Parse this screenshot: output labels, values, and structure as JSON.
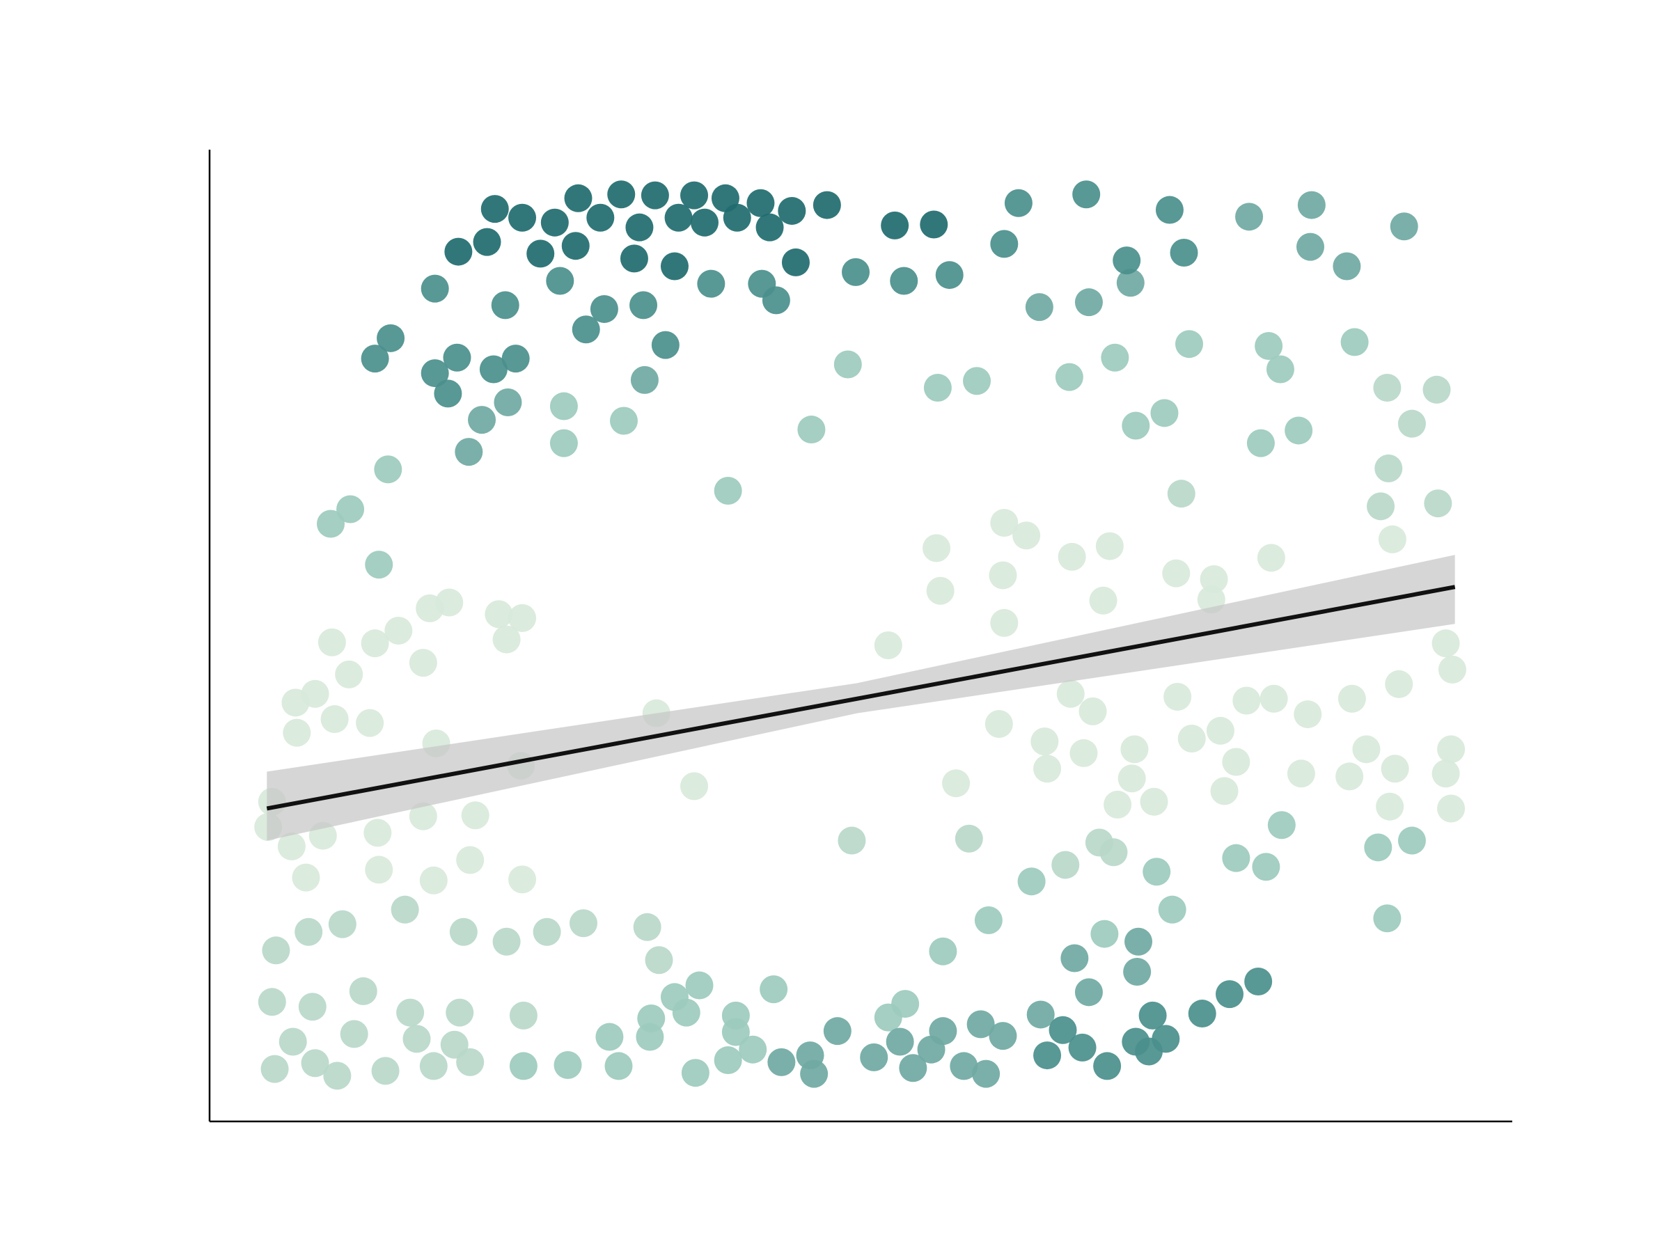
{
  "chart_data": {
    "type": "scatter",
    "xlim": [
      0,
      100
    ],
    "ylim": [
      0,
      100
    ],
    "series": [
      {
        "color": "#d8e9da",
        "x": [
          61,
          62.7,
          55.8,
          66.2,
          69.1,
          81.5,
          90.8,
          74.2,
          77.1,
          56.1,
          60.9,
          16.9,
          18.4,
          22.2,
          24,
          9.4,
          12.7,
          14.5,
          22.8,
          52.1,
          61,
          68.6,
          76.9,
          16.4,
          10.7,
          6.6,
          8.1,
          9.6,
          12.3,
          6.7,
          34.3,
          17.4,
          23.9,
          37.2,
          66.1,
          67.8,
          71,
          74.3,
          75.4,
          77.6,
          79.6,
          81.7,
          84.3,
          87.7,
          91.3,
          95.4,
          94.9,
          60.6,
          64.1,
          64.3,
          67.1,
          70.8,
          72.5,
          69.7,
          57.3,
          4.8,
          4.5,
          8.7,
          12.9,
          16.4,
          20.4,
          6.3,
          7.4,
          13,
          17.2,
          20,
          24,
          88.8,
          91,
          94.9,
          95.3,
          87.5,
          83.8,
          78.8,
          77.9,
          95.3,
          90.6
        ],
        "values": [
          61.6,
          60.3,
          59,
          58.1,
          59.2,
          58,
          59.9,
          56.4,
          55.8,
          54.6,
          56.2,
          52.8,
          53.4,
          52.2,
          51.8,
          49.3,
          49.2,
          50.5,
          49.6,
          49,
          51.3,
          53.6,
          53.7,
          47.2,
          46,
          43.1,
          44,
          41.4,
          41,
          40,
          42,
          38.9,
          36.6,
          34.5,
          44,
          42.2,
          38.3,
          43.7,
          39.4,
          40.2,
          43.3,
          43.5,
          41.9,
          43.5,
          45,
          46.5,
          49.2,
          40.9,
          39.1,
          36.3,
          37.9,
          35.3,
          32.9,
          32.6,
          34.8,
          32.9,
          30.3,
          29.4,
          29.7,
          31.4,
          31.5,
          28.3,
          25.1,
          25.9,
          24.8,
          26.9,
          24.9,
          38.3,
          36.3,
          35.8,
          38.3,
          35.5,
          35.8,
          37,
          34,
          32.2,
          32.4
        ]
      },
      {
        "color": "#b8d8ca",
        "x": [
          5.1,
          7.6,
          10.2,
          15,
          19.5,
          22.8,
          25.9,
          28.7,
          33.6,
          34.5,
          4.8,
          7.9,
          11.8,
          15.4,
          19.2,
          24.1,
          6.4,
          11.1,
          15.9,
          18.8,
          5,
          8.1,
          9.8,
          13.5,
          17.2,
          20,
          65.7,
          69.4,
          68.3,
          58.3,
          49.3,
          90.5,
          94.3,
          92.3,
          90.4,
          94.2,
          74.6,
          89.9
        ],
        "values": [
          17.6,
          19.5,
          20.3,
          21.8,
          19.5,
          18.5,
          19.5,
          20.4,
          20,
          16.6,
          12.3,
          11.8,
          13.4,
          11.2,
          11.2,
          10.9,
          8.2,
          9,
          8.5,
          7.9,
          5.4,
          6,
          4.7,
          5.2,
          5.7,
          6.1,
          26.4,
          27.7,
          28.7,
          29.1,
          28.9,
          67.2,
          63.6,
          71.8,
          75.5,
          75.3,
          64.6,
          63.3
        ]
      },
      {
        "color": "#9ccbbd",
        "x": [
          49,
          55.9,
          58.9,
          66,
          69.5,
          75.2,
          81.3,
          82.2,
          87.9,
          27.2,
          31.8,
          27.2,
          46.2,
          71.1,
          73.3,
          80.7,
          83.6,
          13.7,
          39.8,
          90.4,
          73.9,
          68.7,
          59.8,
          56.3,
          63.1,
          72.7,
          78.8,
          81.1,
          82.3,
          89.7,
          92.3,
          53.4,
          52.1,
          37.6,
          43.3,
          35.7,
          40.4,
          33.9,
          36.6,
          30.7,
          33.8,
          40.4,
          41.7,
          37.3,
          39.8,
          27.5,
          31.4,
          24.1,
          9.3,
          10.8,
          13
        ],
        "values": [
          77.9,
          75.5,
          76.2,
          76.6,
          78.6,
          80,
          79.8,
          77.4,
          80.2,
          73.6,
          72.1,
          69.8,
          71.2,
          71.6,
          72.9,
          69.8,
          71.1,
          67.1,
          64.9,
          20.9,
          21.8,
          19.3,
          20.7,
          17.5,
          24.7,
          25.7,
          27.1,
          26.2,
          30.5,
          28.2,
          28.9,
          12.1,
          10.7,
          14,
          13.6,
          12.8,
          10.9,
          10.6,
          11.2,
          8.7,
          8.7,
          9.2,
          7.4,
          5,
          6.3,
          5.8,
          5.7,
          5.7,
          61.5,
          63,
          57.3
        ]
      },
      {
        "color": "#6fa9a2",
        "x": [
          79.8,
          84.6,
          91.7,
          84.5,
          87.3,
          63.7,
          67.5,
          70.7,
          33.4,
          20.9,
          19.9,
          22.9,
          63.8,
          59.2,
          60.9,
          55.4,
          57.9,
          59.6,
          54,
          51,
          53,
          46.4,
          43.9,
          46.1,
          48.2,
          56.3,
          67.5,
          71.2,
          71.3,
          66.4
        ],
        "values": [
          93.1,
          94.3,
          92.1,
          90,
          88,
          83.8,
          84.3,
          86.3,
          76.3,
          72.2,
          68.9,
          74,
          11,
          10,
          8.8,
          7.4,
          5.7,
          4.9,
          5.5,
          6.6,
          8.2,
          4.9,
          6.1,
          6.8,
          9.3,
          9.3,
          13.3,
          15.4,
          18.5,
          16.8
        ]
      },
      {
        "color": "#4a8f8c",
        "x": [
          62.1,
          67.3,
          73.7,
          61,
          38.5,
          42.4,
          49.6,
          53.3,
          17.3,
          22.7,
          26.9,
          30.3,
          33.3,
          43.5,
          28.9,
          35,
          13.9,
          12.7,
          19,
          23.5,
          17.3,
          21.8,
          18.3,
          56.8,
          70.4,
          74.8,
          68.9,
          72.1,
          73.4,
          71.1,
          72.4,
          76.2,
          78.3,
          80.5,
          64.3,
          67,
          65.5
        ],
        "values": [
          94.5,
          95.4,
          93.8,
          90.3,
          86.2,
          86.2,
          87.4,
          86.5,
          85.7,
          84,
          86.5,
          83.6,
          84,
          84.5,
          81.5,
          79.9,
          80.6,
          78.5,
          78.6,
          78.5,
          77,
          77.4,
          74.9,
          87.1,
          88.6,
          89.4,
          5.7,
          7.2,
          8.5,
          8.2,
          10.9,
          11.1,
          13.1,
          14.4,
          6.8,
          7.6,
          9.4
        ]
      },
      {
        "color": "#1f6b6e",
        "x": [
          21.9,
          28.3,
          31.6,
          34.2,
          37.2,
          39.6,
          42.3,
          44.7,
          47.4,
          52.6,
          55.6,
          19.1,
          21.3,
          25.4,
          28.1,
          32.6,
          35.7,
          45,
          24,
          26.5,
          30,
          33,
          36,
          38,
          40.5,
          43
        ],
        "values": [
          93.9,
          95,
          95.4,
          95.3,
          95.3,
          95,
          94.5,
          93.7,
          94.3,
          92.2,
          92.3,
          89.5,
          90.5,
          89.3,
          90.1,
          88.8,
          88,
          88.4,
          93,
          92.5,
          93,
          92,
          93,
          92.5,
          93,
          92
        ]
      }
    ],
    "regression": {
      "color": "#111111",
      "band_color": "#c8c8c8",
      "x": [
        4.4,
        49.7,
        95.6
      ],
      "y": [
        32.2,
        43.5,
        55.0
      ],
      "upper": [
        36.0,
        45.1,
        58.3
      ],
      "lower": [
        28.9,
        42.0,
        51.2
      ]
    }
  }
}
